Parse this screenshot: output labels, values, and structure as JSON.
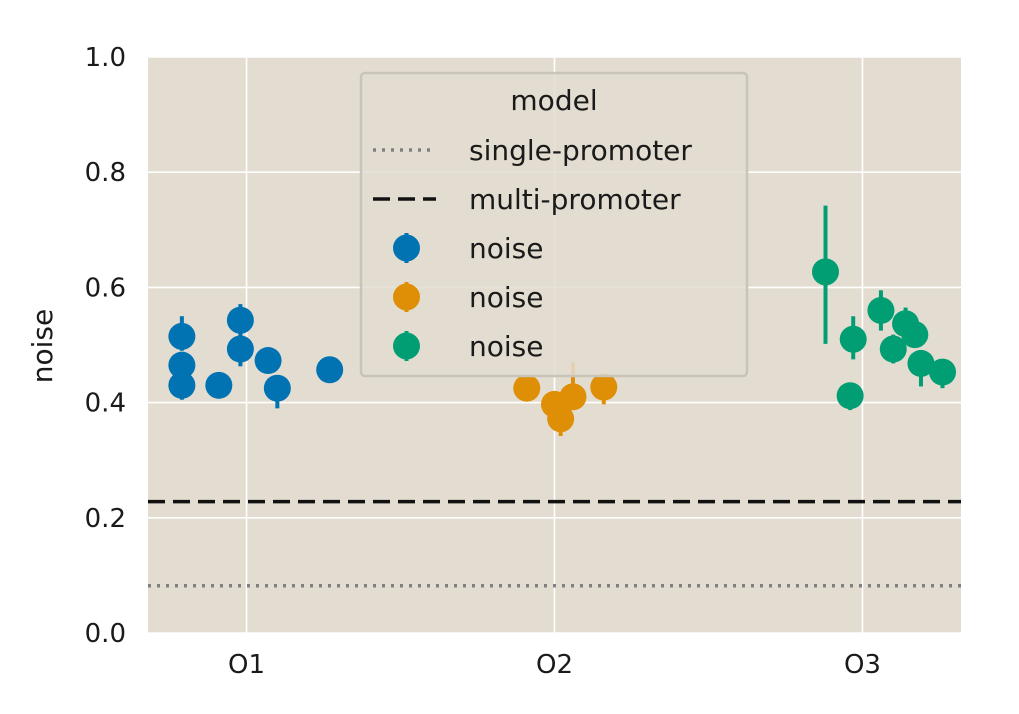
{
  "chart_data": {
    "type": "scatter",
    "ylabel": "noise",
    "xlabel": "",
    "categories": [
      "O1",
      "O2",
      "O3"
    ],
    "x_range": [
      -0.32,
      2.32
    ],
    "ylim": [
      0.0,
      1.0
    ],
    "yticks": [
      0.0,
      0.2,
      0.4,
      0.6,
      0.8,
      1.0
    ],
    "ytick_labels": [
      "0.0",
      "0.2",
      "0.4",
      "0.6",
      "0.8",
      "1.0"
    ],
    "grid": true,
    "background": "#e3ddd1",
    "grid_color": "#ffffff",
    "reference_lines": [
      {
        "name": "single-promoter",
        "style": "dotted",
        "color": "#808080",
        "y": 0.082
      },
      {
        "name": "multi-promoter",
        "style": "dashed",
        "color": "#111111",
        "y": 0.228
      }
    ],
    "series": [
      {
        "name": "noise",
        "color": "#0173b2",
        "points": [
          {
            "x": -0.21,
            "y": 0.515,
            "err": [
              0.025,
              0.035
            ]
          },
          {
            "x": -0.21,
            "y": 0.465,
            "err": [
              0.02,
              0.02
            ]
          },
          {
            "x": -0.21,
            "y": 0.43,
            "err": [
              0.025,
              0.015
            ]
          },
          {
            "x": -0.09,
            "y": 0.43,
            "err": [
              0.012,
              0.012
            ]
          },
          {
            "x": -0.02,
            "y": 0.543,
            "err": [
              0.028,
              0.028
            ]
          },
          {
            "x": -0.02,
            "y": 0.493,
            "err": [
              0.03,
              0.025
            ]
          },
          {
            "x": 0.07,
            "y": 0.473,
            "err": [
              0.015,
              0.015
            ]
          },
          {
            "x": 0.1,
            "y": 0.425,
            "err": [
              0.035,
              0.02
            ]
          },
          {
            "x": 0.27,
            "y": 0.457,
            "err": [
              0.01,
              0.01
            ]
          }
        ]
      },
      {
        "name": "noise",
        "color": "#de8f05",
        "points": [
          {
            "x": 0.91,
            "y": 0.425,
            "err": [
              0.015,
              0.015
            ]
          },
          {
            "x": 1.0,
            "y": 0.397,
            "err": [
              0.02,
              0.02
            ]
          },
          {
            "x": 1.02,
            "y": 0.372,
            "err": [
              0.03,
              0.025
            ]
          },
          {
            "x": 1.06,
            "y": 0.41,
            "err": [
              0.02,
              0.06
            ]
          },
          {
            "x": 1.16,
            "y": 0.427,
            "err": [
              0.03,
              0.02
            ]
          }
        ]
      },
      {
        "name": "noise",
        "color": "#029e73",
        "points": [
          {
            "x": 1.88,
            "y": 0.627,
            "err": [
              0.125,
              0.115
            ]
          },
          {
            "x": 1.97,
            "y": 0.51,
            "err": [
              0.035,
              0.04
            ]
          },
          {
            "x": 1.96,
            "y": 0.412,
            "err": [
              0.025,
              0.02
            ]
          },
          {
            "x": 2.06,
            "y": 0.56,
            "err": [
              0.035,
              0.035
            ]
          },
          {
            "x": 2.1,
            "y": 0.493,
            "err": [
              0.025,
              0.025
            ]
          },
          {
            "x": 2.14,
            "y": 0.537,
            "err": [
              0.028,
              0.028
            ]
          },
          {
            "x": 2.17,
            "y": 0.518,
            "err": [
              0.02,
              0.02
            ]
          },
          {
            "x": 2.19,
            "y": 0.468,
            "err": [
              0.04,
              0.02
            ]
          },
          {
            "x": 2.26,
            "y": 0.453,
            "err": [
              0.028,
              0.022
            ]
          }
        ]
      }
    ],
    "legend": {
      "title": "model",
      "placement": "top-center",
      "entries": [
        {
          "label": "single-promoter",
          "kind": "dotted-line",
          "color": "#808080"
        },
        {
          "label": "multi-promoter",
          "kind": "dashed-line",
          "color": "#111111"
        },
        {
          "label": "noise",
          "kind": "marker",
          "color": "#0173b2"
        },
        {
          "label": "noise",
          "kind": "marker",
          "color": "#de8f05"
        },
        {
          "label": "noise",
          "kind": "marker",
          "color": "#029e73"
        }
      ]
    }
  }
}
